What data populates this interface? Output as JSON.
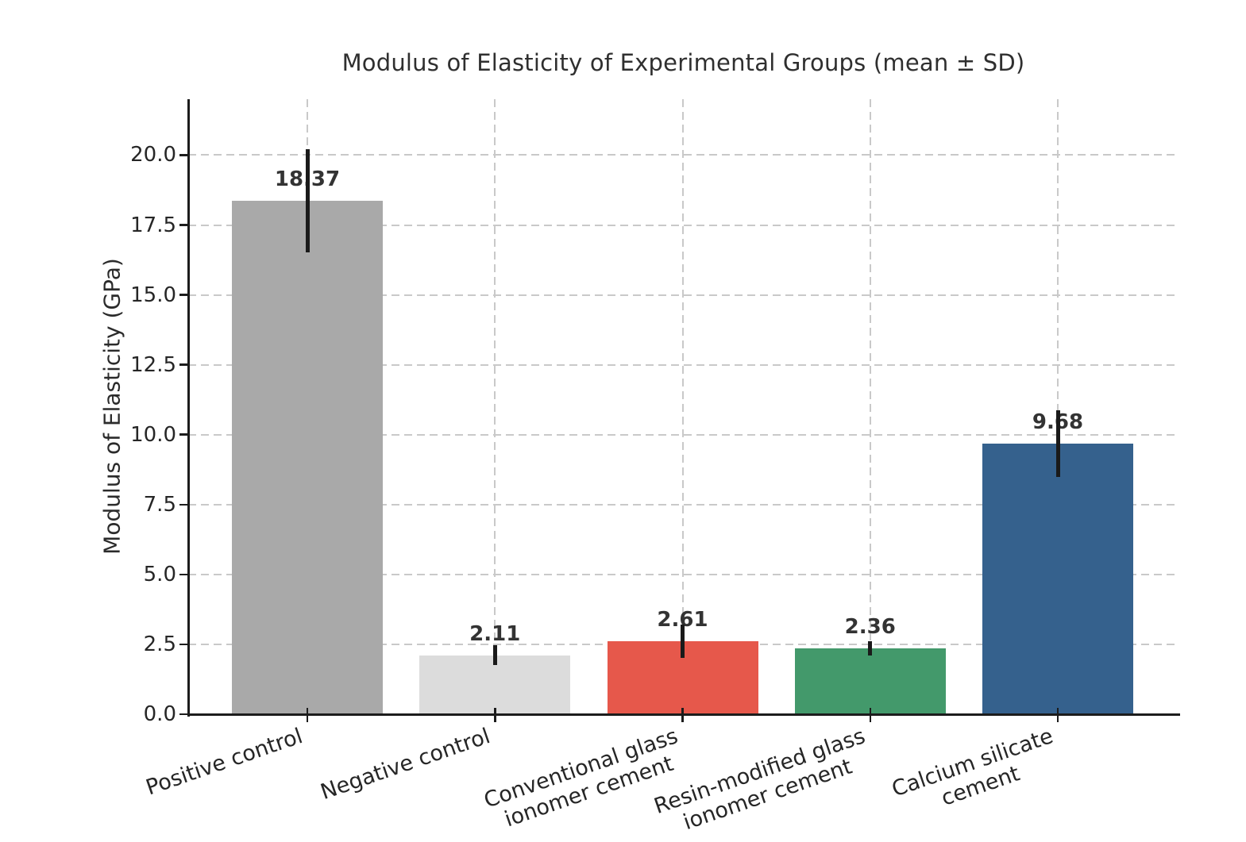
{
  "chart_data": {
    "type": "bar",
    "title": "Modulus of Elasticity of Experimental Groups (mean ± SD)",
    "ylabel": "Modulus of Elasticity (GPa)",
    "xlabel": "",
    "categories": [
      "Positive control",
      "Negative control",
      "Conventional glass\nionomer cement",
      "Resin-modified glass\nionomer cement",
      "Calcium silicate\ncement"
    ],
    "values": [
      18.37,
      2.11,
      2.61,
      2.36,
      9.68
    ],
    "errors_sd": [
      1.85,
      0.35,
      0.6,
      0.25,
      1.2
    ],
    "value_labels": [
      "18.37",
      "2.11",
      "2.61",
      "2.36",
      "9.68"
    ],
    "bar_colors": [
      "#a9a9a9",
      "#dcdcdc",
      "#e6584b",
      "#43996b",
      "#35618d"
    ],
    "ylim": [
      0,
      22
    ],
    "yticks": [
      0.0,
      2.5,
      5.0,
      7.5,
      10.0,
      12.5,
      15.0,
      17.5,
      20.0
    ],
    "ytick_labels": [
      "0.0",
      "2.5",
      "5.0",
      "7.5",
      "10.0",
      "12.5",
      "15.0",
      "17.5",
      "20.0"
    ],
    "grid": "dashed light-gray gridlines on both axes",
    "legend_position": "none",
    "axis_color": "#1c1c1c",
    "grid_color": "#c9c9c9",
    "error_bar_color": "#1a1a1a",
    "text_color": "#2b2b2b"
  }
}
